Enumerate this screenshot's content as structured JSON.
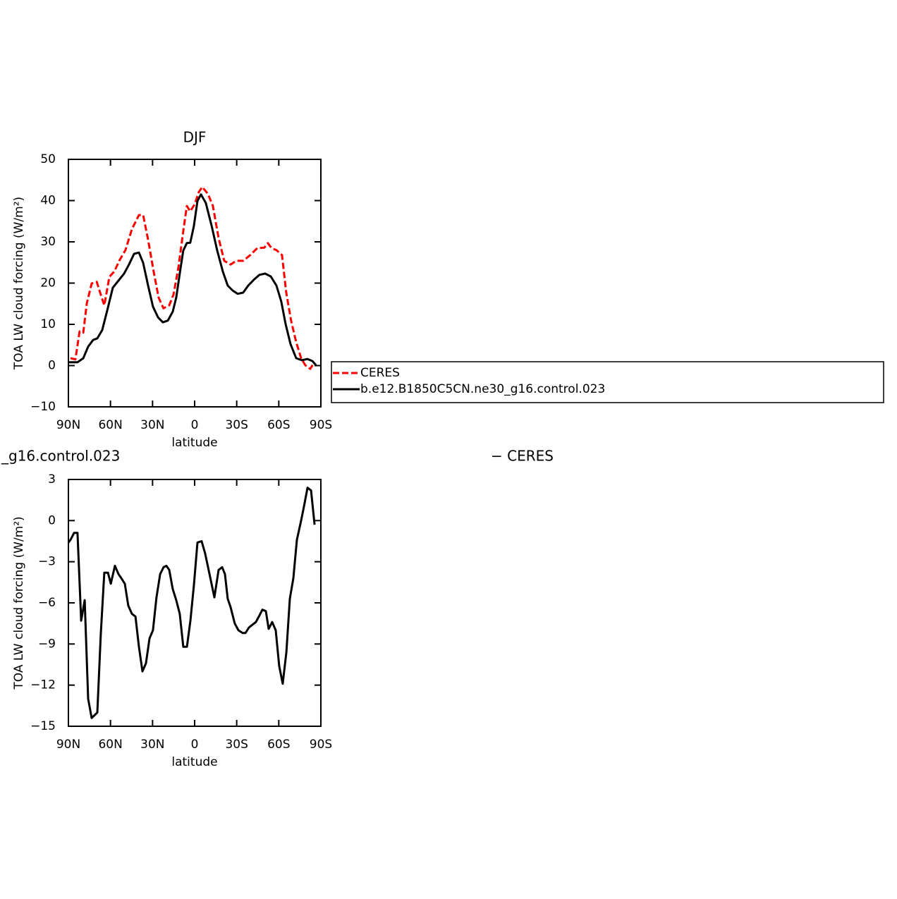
{
  "chart_data": [
    {
      "type": "line",
      "title": "DJF",
      "xlabel": "latitude",
      "ylabel": "TOA LW cloud forcing (W/m²)",
      "xlim": [
        90,
        -90
      ],
      "xticks": [
        {
          "value": 90,
          "label": "90N"
        },
        {
          "value": 60,
          "label": "60N"
        },
        {
          "value": 30,
          "label": "30N"
        },
        0,
        {
          "value": -30,
          "label": "30S"
        },
        {
          "value": -60,
          "label": "60S"
        },
        {
          "value": -90,
          "label": "90S"
        }
      ],
      "ylim": [
        -10,
        50
      ],
      "yticks": [
        {
          "value": -10,
          "label": "−10"
        },
        0,
        10,
        20,
        30,
        40,
        50
      ],
      "legend": "outside right",
      "series": [
        {
          "name": "CERES",
          "color": "#ff0000",
          "line_style": "dashed",
          "x": [
            88.5,
            85.0,
            82.0,
            79.4,
            76.9,
            73.4,
            69.8,
            67.9,
            64.4,
            60.8,
            57.3,
            53.3,
            49.3,
            44.7,
            39.7,
            36.7,
            33.2,
            29.2,
            25.7,
            22.2,
            18.1,
            15.1,
            11.6,
            8.1,
            5.6,
            3.1,
            0.0,
            -3.0,
            -5.5,
            -9.5,
            -13.0,
            -17.1,
            -21.1,
            -25.6,
            -29.6,
            -34.6,
            -39.7,
            -44.7,
            -49.7,
            -52.2,
            -54.8,
            -58.3,
            -62.3,
            -65.3,
            -68.8,
            -72.4,
            -75.9,
            -78.9,
            -82.4,
            -84.9
          ],
          "values": [
            1.8,
            1.5,
            8.3,
            8,
            15.1,
            19.9,
            20.3,
            18.2,
            14.6,
            21.5,
            22.8,
            25.7,
            28,
            33.1,
            36.5,
            36.5,
            30.5,
            22.8,
            16.5,
            13.9,
            14.6,
            17.2,
            23.7,
            32.6,
            38.7,
            37.4,
            39.1,
            42.1,
            43.3,
            41.6,
            38.7,
            30.9,
            25.4,
            24.5,
            25.4,
            25.4,
            26.8,
            28.5,
            28.6,
            29.7,
            28.5,
            28,
            26.8,
            17.7,
            10.9,
            5.7,
            1.8,
            0.1,
            -0.8,
            0.6
          ]
        },
        {
          "name": "b.e12.B1850C5CN.ne30_g16.control.023",
          "color": "#000000",
          "line_style": "solid",
          "x": [
            90,
            83.5,
            79.4,
            75.9,
            72.4,
            69.4,
            65.9,
            62.3,
            58.3,
            54.3,
            50.3,
            46.8,
            43.2,
            39.7,
            36.7,
            33.2,
            29.7,
            26.1,
            22.7,
            19.1,
            15.6,
            13.1,
            10.6,
            8.1,
            5.6,
            3.1,
            0.5,
            -2.0,
            -4.5,
            -8.0,
            -12.1,
            -16.1,
            -20.1,
            -23.6,
            -27.1,
            -30.7,
            -34.6,
            -38.2,
            -42.2,
            -46.2,
            -50.3,
            -54.3,
            -58.3,
            -61.8,
            -64.9,
            -68.4,
            -72.4,
            -76.4,
            -80.4,
            -84.0,
            -86.5
          ],
          "values": [
            0.8,
            0.8,
            1.8,
            4.6,
            6.2,
            6.6,
            8.6,
            13.4,
            18.9,
            20.6,
            22.3,
            24.5,
            27.1,
            27.4,
            24.9,
            19.4,
            14.3,
            11.7,
            10.5,
            10.9,
            13.1,
            16.5,
            22.3,
            27.9,
            29.7,
            29.8,
            33.9,
            39.9,
            41.5,
            39.4,
            33.9,
            27.9,
            22.8,
            19.4,
            18.2,
            17.4,
            17.7,
            19.4,
            20.8,
            22.0,
            22.3,
            21.6,
            19.4,
            15.5,
            10.0,
            5.2,
            1.8,
            1.3,
            1.6,
            1.1,
            0.1
          ]
        }
      ]
    },
    {
      "type": "line",
      "title": [
        "_g16.control.023",
        "− CERES"
      ],
      "xlabel": "latitude",
      "ylabel": "TOA LW cloud forcing (W/m²)",
      "xlim": [
        90,
        -90
      ],
      "xticks": [
        {
          "value": 90,
          "label": "90N"
        },
        {
          "value": 60,
          "label": "60N"
        },
        {
          "value": 30,
          "label": "30N"
        },
        0,
        {
          "value": -30,
          "label": "30S"
        },
        {
          "value": -60,
          "label": "60S"
        },
        {
          "value": -90,
          "label": "90S"
        }
      ],
      "ylim": [
        -15,
        3
      ],
      "yticks": [
        {
          "value": -15,
          "label": "−15"
        },
        {
          "value": -12,
          "label": "−12"
        },
        {
          "value": -9,
          "label": "−9"
        },
        {
          "value": -6,
          "label": "−6"
        },
        {
          "value": -3,
          "label": "−3"
        },
        0,
        3
      ],
      "series": [
        {
          "color": "#000000",
          "line_style": "solid",
          "x": [
            90,
            88.5,
            86,
            83.5,
            80.9,
            78.4,
            75.9,
            73.4,
            69.4,
            66.9,
            64.4,
            61.8,
            59.8,
            56.8,
            54.3,
            52.3,
            49.8,
            47.3,
            44.7,
            42.2,
            39.7,
            37.2,
            34.7,
            32.2,
            29.7,
            27.2,
            24.6,
            22.1,
            20.1,
            18.1,
            15.6,
            13.1,
            10.6,
            8.1,
            5.5,
            3.0,
            0.5,
            -2.0,
            -5.0,
            -7.5,
            -10.6,
            -14.1,
            -17.1,
            -19.6,
            -21.6,
            -23.6,
            -25.6,
            -28.6,
            -31.2,
            -34.2,
            -36.2,
            -38.7,
            -41.2,
            -43.7,
            -46.3,
            -48.3,
            -50.8,
            -52.8,
            -55.3,
            -57.8,
            -60.3,
            -62.8,
            -65.4,
            -67.9,
            -70.4,
            -72.9,
            -75.9,
            -77.9,
            -80.5,
            -83.0,
            -85.5
          ],
          "values": [
            -1.6,
            -1.4,
            -0.9,
            -0.9,
            -7.3,
            -5.8,
            -13.0,
            -14.4,
            -14.0,
            -8.3,
            -3.8,
            -3.8,
            -4.6,
            -3.3,
            -3.9,
            -4.2,
            -4.6,
            -6.2,
            -6.8,
            -7.0,
            -9.2,
            -11.0,
            -10.4,
            -8.6,
            -8.0,
            -5.6,
            -3.9,
            -3.4,
            -3.3,
            -3.6,
            -5.0,
            -5.8,
            -6.8,
            -9.2,
            -9.2,
            -7.3,
            -4.7,
            -1.6,
            -1.5,
            -2.4,
            -3.9,
            -5.6,
            -3.6,
            -3.4,
            -3.9,
            -5.7,
            -6.3,
            -7.5,
            -8.0,
            -8.2,
            -8.2,
            -7.8,
            -7.6,
            -7.4,
            -6.9,
            -6.5,
            -6.6,
            -7.9,
            -7.4,
            -8.0,
            -10.6,
            -11.9,
            -9.6,
            -5.7,
            -4.2,
            -1.4,
            0.0,
            1.0,
            2.4,
            2.2,
            -0.3
          ]
        }
      ]
    }
  ]
}
